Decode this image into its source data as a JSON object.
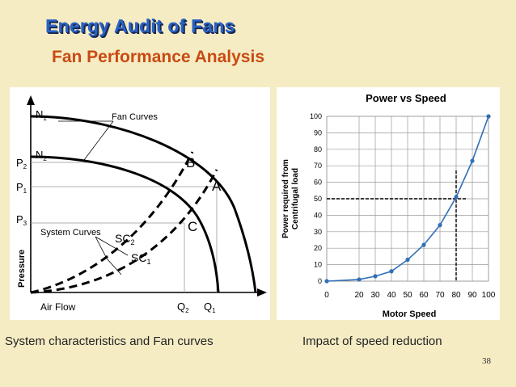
{
  "slide": {
    "title": "Energy Audit of Fans",
    "subtitle": "Fan Performance Analysis",
    "caption_left": "System characteristics and Fan curves",
    "caption_right": "Impact of speed reduction",
    "slide_number": "38"
  },
  "fan_diagram": {
    "n1_label": "N",
    "n1_sub": "1",
    "n2_label": "N",
    "n2_sub": "2",
    "fan_curves_label": "Fan Curves",
    "system_curves_label": "System Curves",
    "sc2_label": "SC",
    "sc2_sub": "2",
    "sc1_label": "SC",
    "sc1_sub": "1",
    "point_a": "A",
    "point_b": "B",
    "point_c": "C",
    "p1_label": "P",
    "p1_sub": "1",
    "p2_label": "P",
    "p2_sub": "2",
    "p3_label": "P",
    "p3_sub": "3",
    "q1_label": "Q",
    "q1_sub": "1",
    "q2_label": "Q",
    "q2_sub": "2",
    "x_axis_label": "Air Flow",
    "y_axis_label": "Pressure"
  },
  "chart_data": {
    "type": "line",
    "title": "Power vs Speed",
    "xlabel": "Motor Speed",
    "ylabel_line1": "Power required from",
    "ylabel_line2": "Centrifugal load",
    "x": [
      0,
      20,
      30,
      40,
      50,
      60,
      70,
      80,
      90,
      100
    ],
    "values": [
      0,
      1,
      3,
      6,
      13,
      22,
      34,
      51,
      73,
      100
    ],
    "xlim": [
      0,
      100
    ],
    "ylim": [
      0,
      100
    ],
    "xticks": [
      "0",
      "20",
      "30",
      "40",
      "50",
      "60",
      "70",
      "80",
      "90",
      "100"
    ],
    "yticks": [
      "0",
      "10",
      "20",
      "30",
      "40",
      "50",
      "60",
      "70",
      "80",
      "90",
      "100"
    ],
    "reference_x": 80,
    "reference_y": 50,
    "grid": true,
    "line_color": "#2f6fb5"
  }
}
